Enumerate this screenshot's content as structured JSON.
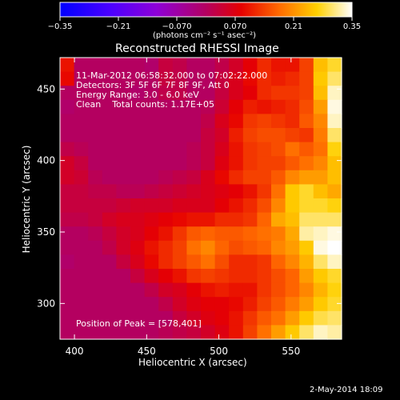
{
  "chart_data": {
    "type": "heatmap",
    "title": "Reconstructed RHESSI Image",
    "xlabel": "Heliocentric X (arcsec)",
    "ylabel": "Heliocentric Y (arcsec)",
    "xlim": [
      390,
      585
    ],
    "ylim": [
      275,
      472
    ],
    "x_ticks": [
      400,
      450,
      500,
      550
    ],
    "y_ticks": [
      300,
      350,
      400,
      450
    ],
    "colorbar": {
      "label": "(photons cm⁻² s⁻¹ asec⁻²)",
      "range": [
        -0.35,
        0.35
      ],
      "ticks": [
        "−0.35",
        "−0.21",
        "−0.070",
        "0.070",
        "0.21",
        "0.35"
      ]
    },
    "info_lines": [
      "11-Mar-2012 06:58:32.000 to 07:02:22.000",
      "Detectors: 3F 5F 6F 7F 8F 9F, Att 0",
      "Energy Range: 3.0 - 6.0 keV",
      "Clean    Total counts: 1.17E+05"
    ],
    "peak_label": "Position of Peak = [578,401]",
    "peak_position": [
      578,
      401
    ],
    "grid_x": [
      390,
      585
    ],
    "grid_y": [
      275,
      472
    ],
    "grid_cols": 20,
    "grid_rows": 20,
    "grid_values": [
      [
        0.1,
        0.0,
        0.0,
        0.0,
        0.0,
        0.0,
        -0.01,
        0.03,
        0.02,
        0.0,
        0.0,
        0.02,
        0.05,
        0.08,
        0.12,
        0.1,
        0.1,
        0.14,
        0.25,
        0.28
      ],
      [
        0.09,
        0.0,
        0.0,
        0.0,
        0.0,
        0.0,
        0.0,
        0.03,
        0.02,
        0.0,
        0.0,
        0.03,
        0.06,
        0.09,
        0.12,
        0.11,
        0.12,
        0.14,
        0.26,
        0.3
      ],
      [
        0.0,
        0.0,
        0.0,
        0.0,
        0.0,
        -0.01,
        0.0,
        0.02,
        0.02,
        0.0,
        0.0,
        0.03,
        0.06,
        0.08,
        0.12,
        0.13,
        0.13,
        0.14,
        0.25,
        0.33
      ],
      [
        -0.01,
        0.0,
        0.0,
        0.0,
        0.0,
        0.0,
        0.0,
        0.0,
        0.0,
        0.0,
        0.01,
        0.04,
        0.08,
        0.11,
        0.1,
        0.11,
        0.12,
        0.15,
        0.22,
        0.34
      ],
      [
        0.0,
        0.0,
        0.0,
        0.0,
        0.0,
        0.0,
        0.0,
        0.0,
        0.0,
        0.0,
        0.02,
        0.06,
        0.09,
        0.13,
        0.14,
        0.13,
        0.12,
        0.16,
        0.2,
        0.33
      ],
      [
        0.0,
        0.0,
        0.0,
        0.0,
        0.0,
        0.0,
        0.0,
        0.0,
        0.0,
        0.0,
        0.03,
        0.05,
        0.11,
        0.14,
        0.15,
        0.15,
        0.14,
        0.13,
        0.19,
        0.3
      ],
      [
        0.02,
        0.01,
        0.0,
        0.0,
        0.0,
        0.0,
        0.0,
        0.0,
        0.0,
        0.01,
        0.03,
        0.06,
        0.1,
        0.13,
        0.14,
        0.15,
        0.18,
        0.16,
        0.18,
        0.27
      ],
      [
        0.05,
        0.03,
        0.0,
        0.0,
        0.0,
        0.0,
        0.0,
        0.0,
        0.0,
        0.01,
        0.03,
        0.07,
        0.1,
        0.13,
        0.14,
        0.14,
        0.16,
        0.18,
        0.2,
        0.25
      ],
      [
        0.05,
        0.04,
        0.01,
        0.0,
        0.0,
        0.0,
        0.0,
        0.01,
        0.02,
        0.03,
        0.06,
        0.09,
        0.12,
        0.14,
        0.14,
        0.16,
        0.2,
        0.22,
        0.22,
        0.25
      ],
      [
        0.03,
        0.03,
        0.02,
        0.02,
        0.01,
        0.01,
        0.02,
        0.03,
        0.04,
        0.05,
        0.06,
        0.07,
        0.08,
        0.1,
        0.13,
        0.18,
        0.26,
        0.28,
        0.25,
        0.23
      ],
      [
        0.03,
        0.03,
        0.03,
        0.03,
        0.04,
        0.05,
        0.05,
        0.05,
        0.06,
        0.06,
        0.06,
        0.08,
        0.1,
        0.12,
        0.15,
        0.2,
        0.26,
        0.28,
        0.28,
        0.27
      ],
      [
        0.02,
        0.02,
        0.03,
        0.05,
        0.06,
        0.06,
        0.07,
        0.08,
        0.09,
        0.1,
        0.1,
        0.12,
        0.12,
        0.13,
        0.17,
        0.23,
        0.25,
        0.3,
        0.3,
        0.3
      ],
      [
        0.0,
        0.0,
        0.01,
        0.03,
        0.05,
        0.06,
        0.08,
        0.1,
        0.13,
        0.16,
        0.17,
        0.16,
        0.16,
        0.17,
        0.18,
        0.19,
        0.23,
        0.32,
        0.33,
        0.34
      ],
      [
        0.0,
        0.0,
        0.0,
        0.02,
        0.05,
        0.07,
        0.1,
        0.12,
        0.14,
        0.18,
        0.2,
        0.17,
        0.15,
        0.16,
        0.17,
        0.2,
        0.22,
        0.26,
        0.34,
        0.35
      ],
      [
        -0.01,
        0.0,
        0.0,
        0.0,
        0.03,
        0.06,
        0.09,
        0.12,
        0.14,
        0.16,
        0.18,
        0.15,
        0.12,
        0.12,
        0.13,
        0.17,
        0.2,
        0.24,
        0.3,
        0.33
      ],
      [
        0.0,
        0.0,
        0.0,
        0.0,
        0.0,
        0.03,
        0.06,
        0.08,
        0.1,
        0.13,
        0.14,
        0.13,
        0.12,
        0.12,
        0.13,
        0.15,
        0.17,
        0.22,
        0.26,
        0.28
      ],
      [
        0.0,
        0.0,
        0.0,
        0.0,
        0.0,
        0.0,
        0.02,
        0.05,
        0.06,
        0.08,
        0.1,
        0.11,
        0.1,
        0.1,
        0.13,
        0.15,
        0.17,
        0.2,
        0.24,
        0.27
      ],
      [
        0.0,
        0.0,
        0.0,
        0.0,
        0.0,
        0.0,
        0.0,
        0.02,
        0.05,
        0.07,
        0.08,
        0.08,
        0.09,
        0.11,
        0.14,
        0.16,
        0.19,
        0.22,
        0.26,
        0.28
      ],
      [
        0.0,
        0.0,
        0.0,
        0.0,
        0.0,
        0.0,
        0.0,
        0.0,
        0.03,
        0.05,
        0.07,
        0.08,
        0.1,
        0.13,
        0.16,
        0.18,
        0.22,
        0.26,
        0.29,
        0.3
      ],
      [
        0.0,
        0.0,
        0.0,
        0.0,
        0.0,
        0.0,
        0.0,
        0.01,
        0.02,
        0.03,
        0.05,
        0.07,
        0.1,
        0.14,
        0.18,
        0.22,
        0.26,
        0.3,
        0.33,
        0.32
      ]
    ]
  },
  "footer": {
    "date": "2-May-2014 18:09"
  }
}
